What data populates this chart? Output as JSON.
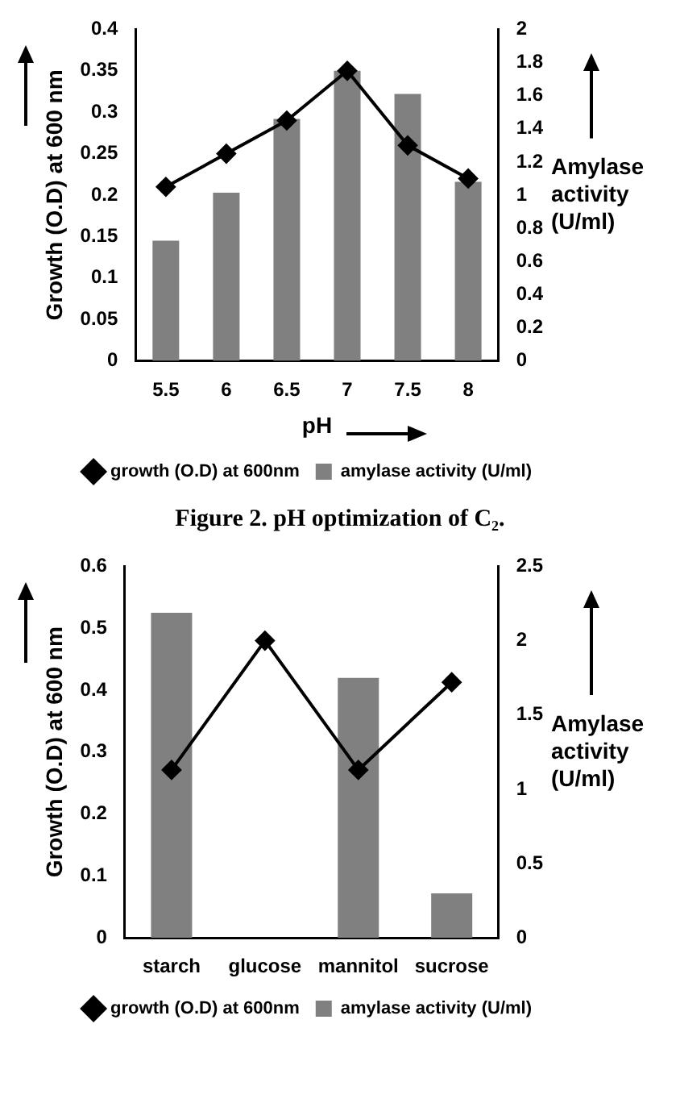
{
  "chart_data": [
    {
      "type": "bar",
      "title": "Figure 2. pH optimization of C₂.",
      "xlabel": "pH",
      "ylabel": "Growth (O.D) at 600 nm",
      "y2label": "Amylase activity (U/ml)",
      "categories": [
        "5.5",
        "6",
        "6.5",
        "7",
        "7.5",
        "8"
      ],
      "series": [
        {
          "name": "amylase activity (U/ml)",
          "color": "#808080",
          "values": [
            0.145,
            0.203,
            0.292,
            0.35,
            0.322,
            0.216
          ]
        },
        {
          "name": "growth (O.D) at 600nm",
          "type": "line",
          "axis": "y2",
          "color": "#000000",
          "values": [
            1.05,
            1.25,
            1.45,
            1.75,
            1.3,
            1.1
          ]
        }
      ],
      "ylim": [
        0,
        0.4
      ],
      "yticks": [
        0,
        0.05,
        0.1,
        0.15,
        0.2,
        0.25,
        0.3,
        0.35,
        0.4
      ],
      "y2lim": [
        0,
        2
      ],
      "y2ticks": [
        0,
        0.2,
        0.4,
        0.6,
        0.8,
        1,
        1.2,
        1.4,
        1.6,
        1.8,
        2
      ],
      "grid": false,
      "legend": "bottom right",
      "marker": "diamond",
      "line_style": "solid"
    },
    {
      "type": "bar",
      "ylabel": "Growth (O.D) at 600 nm",
      "y2label": "Amylase activity (U/ml)",
      "categories": [
        "starch",
        "glucose",
        "mannitol",
        "sucrose"
      ],
      "series": [
        {
          "name": "amylase activity (U/ml)",
          "color": "#808080",
          "values": [
            0.525,
            null,
            0.42,
            0.072
          ]
        },
        {
          "name": "growth (O.D) at 600nm",
          "type": "line",
          "axis": "y2",
          "color": "#000000",
          "values": [
            1.13,
            2.0,
            1.13,
            1.72
          ]
        }
      ],
      "ylim": [
        0,
        0.6
      ],
      "yticks": [
        0,
        0.1,
        0.2,
        0.3,
        0.4,
        0.5,
        0.6
      ],
      "y2lim": [
        0,
        2.5
      ],
      "y2ticks": [
        0,
        0.5,
        1,
        1.5,
        2,
        2.5
      ],
      "grid": false,
      "legend": "bottom right",
      "marker": "diamond",
      "line_style": "solid"
    }
  ]
}
